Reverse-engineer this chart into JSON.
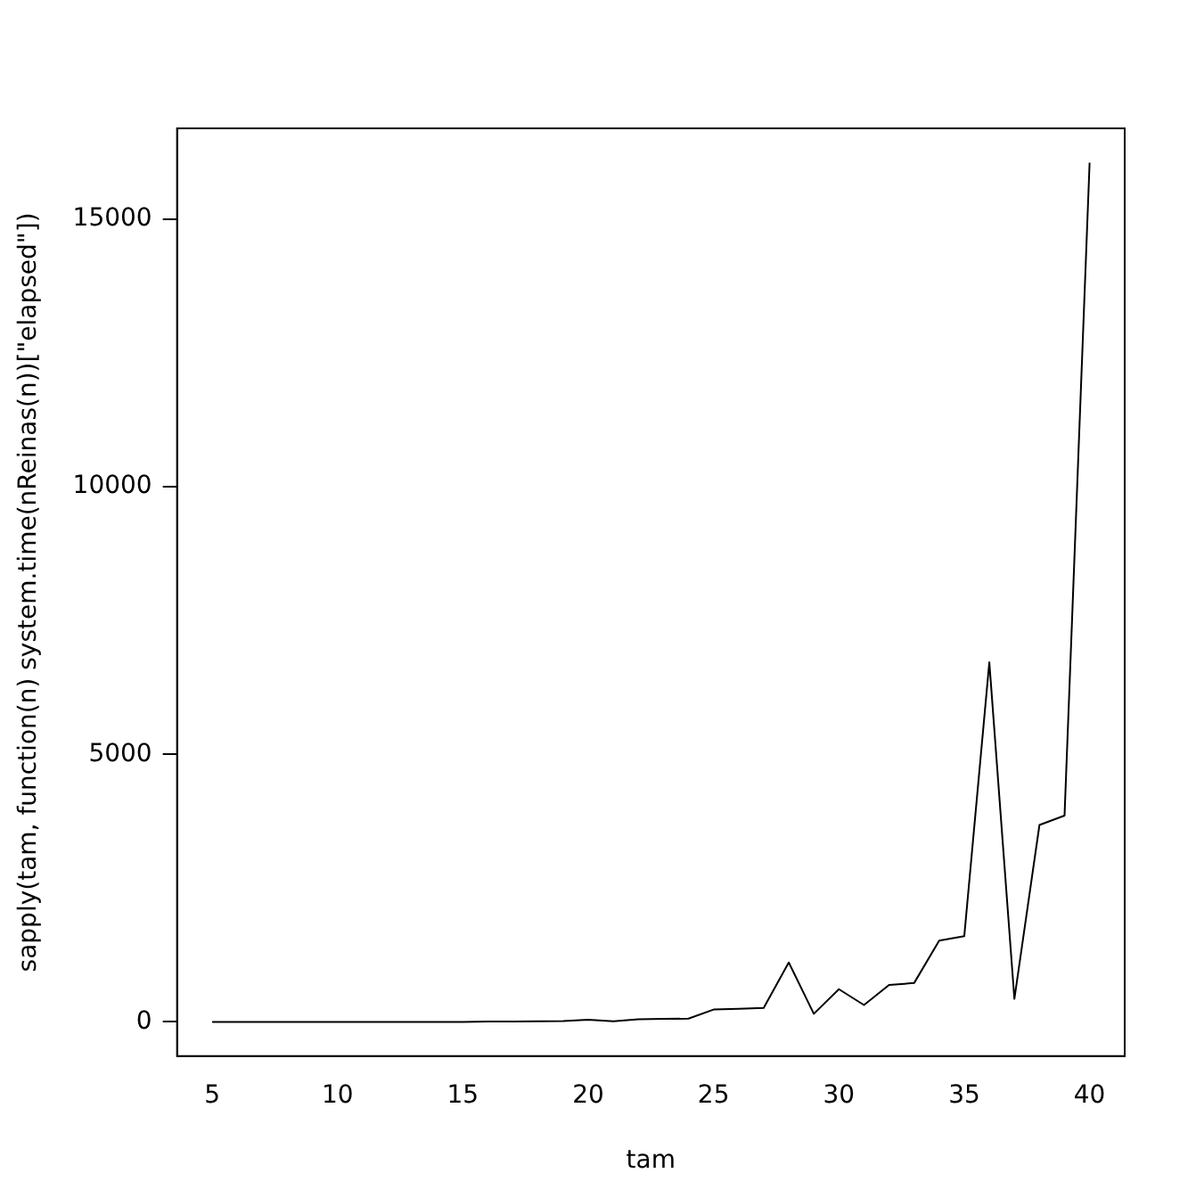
{
  "chart_data": {
    "type": "line",
    "xlabel": "tam",
    "ylabel": "sapply(tam, function(n) system.time(nReinas(n))[\"elapsed\"])",
    "x": [
      5,
      6,
      7,
      8,
      9,
      10,
      11,
      12,
      13,
      14,
      15,
      16,
      17,
      18,
      19,
      20,
      21,
      22,
      23,
      24,
      25,
      26,
      27,
      28,
      29,
      30,
      31,
      32,
      33,
      34,
      35,
      36,
      37,
      38,
      39,
      40
    ],
    "series": [
      {
        "color": "#000000",
        "values": [
          0,
          0,
          0,
          0,
          0,
          0,
          0,
          0,
          0,
          0,
          0,
          5,
          8,
          10,
          15,
          40,
          10,
          50,
          55,
          60,
          230,
          245,
          260,
          1110,
          150,
          610,
          315,
          690,
          725,
          1520,
          1600,
          6720,
          430,
          3680,
          3855,
          16060
        ]
      }
    ],
    "xlim": [
      3.6,
      41.4
    ],
    "ylim": [
      -640,
      16700
    ],
    "xticks": [
      5,
      10,
      15,
      20,
      25,
      30,
      35,
      40
    ],
    "yticks": [
      0,
      5000,
      10000,
      15000
    ],
    "grid": false,
    "legend": false,
    "marker": "none",
    "line_style": "solid"
  }
}
